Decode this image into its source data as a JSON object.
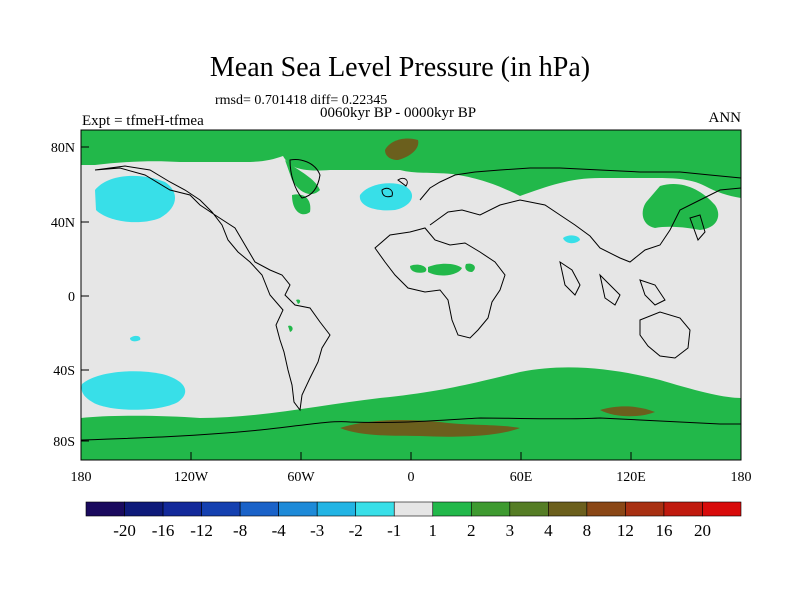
{
  "title": "Mean Sea Level Pressure (in hPa)",
  "stats": "rmsd= 0.701418 diff= 0.22345",
  "experiment": "Expt = tfmeH-tfmea",
  "period": "0060kyr BP - 0000kyr BP",
  "season": "ANN",
  "axes": {
    "lat_labels": [
      "80N",
      "40N",
      "0",
      "40S",
      "80S"
    ],
    "lon_labels": [
      "180",
      "120W",
      "60W",
      "0",
      "60E",
      "120E",
      "180"
    ]
  },
  "colorbar": {
    "labels": [
      "-20",
      "-16",
      "-12",
      "-8",
      "-4",
      "-3",
      "-2",
      "-1",
      "1",
      "2",
      "3",
      "4",
      "8",
      "12",
      "16",
      "20"
    ],
    "colors": [
      "#1a0a5e",
      "#0e1a7a",
      "#13299a",
      "#1440b0",
      "#1a62c8",
      "#1e8ad8",
      "#22b4e4",
      "#38dfe8",
      "#e6e6e6",
      "#22b84a",
      "#3e9a30",
      "#557d25",
      "#6b5f1d",
      "#8a4716",
      "#a83012",
      "#c01a0e",
      "#d80b0b"
    ]
  },
  "colors": {
    "neutral": "#e6e6e6",
    "green": "#22b84a",
    "cyan": "#38dfe8",
    "olive": "#6b5f1d"
  }
}
